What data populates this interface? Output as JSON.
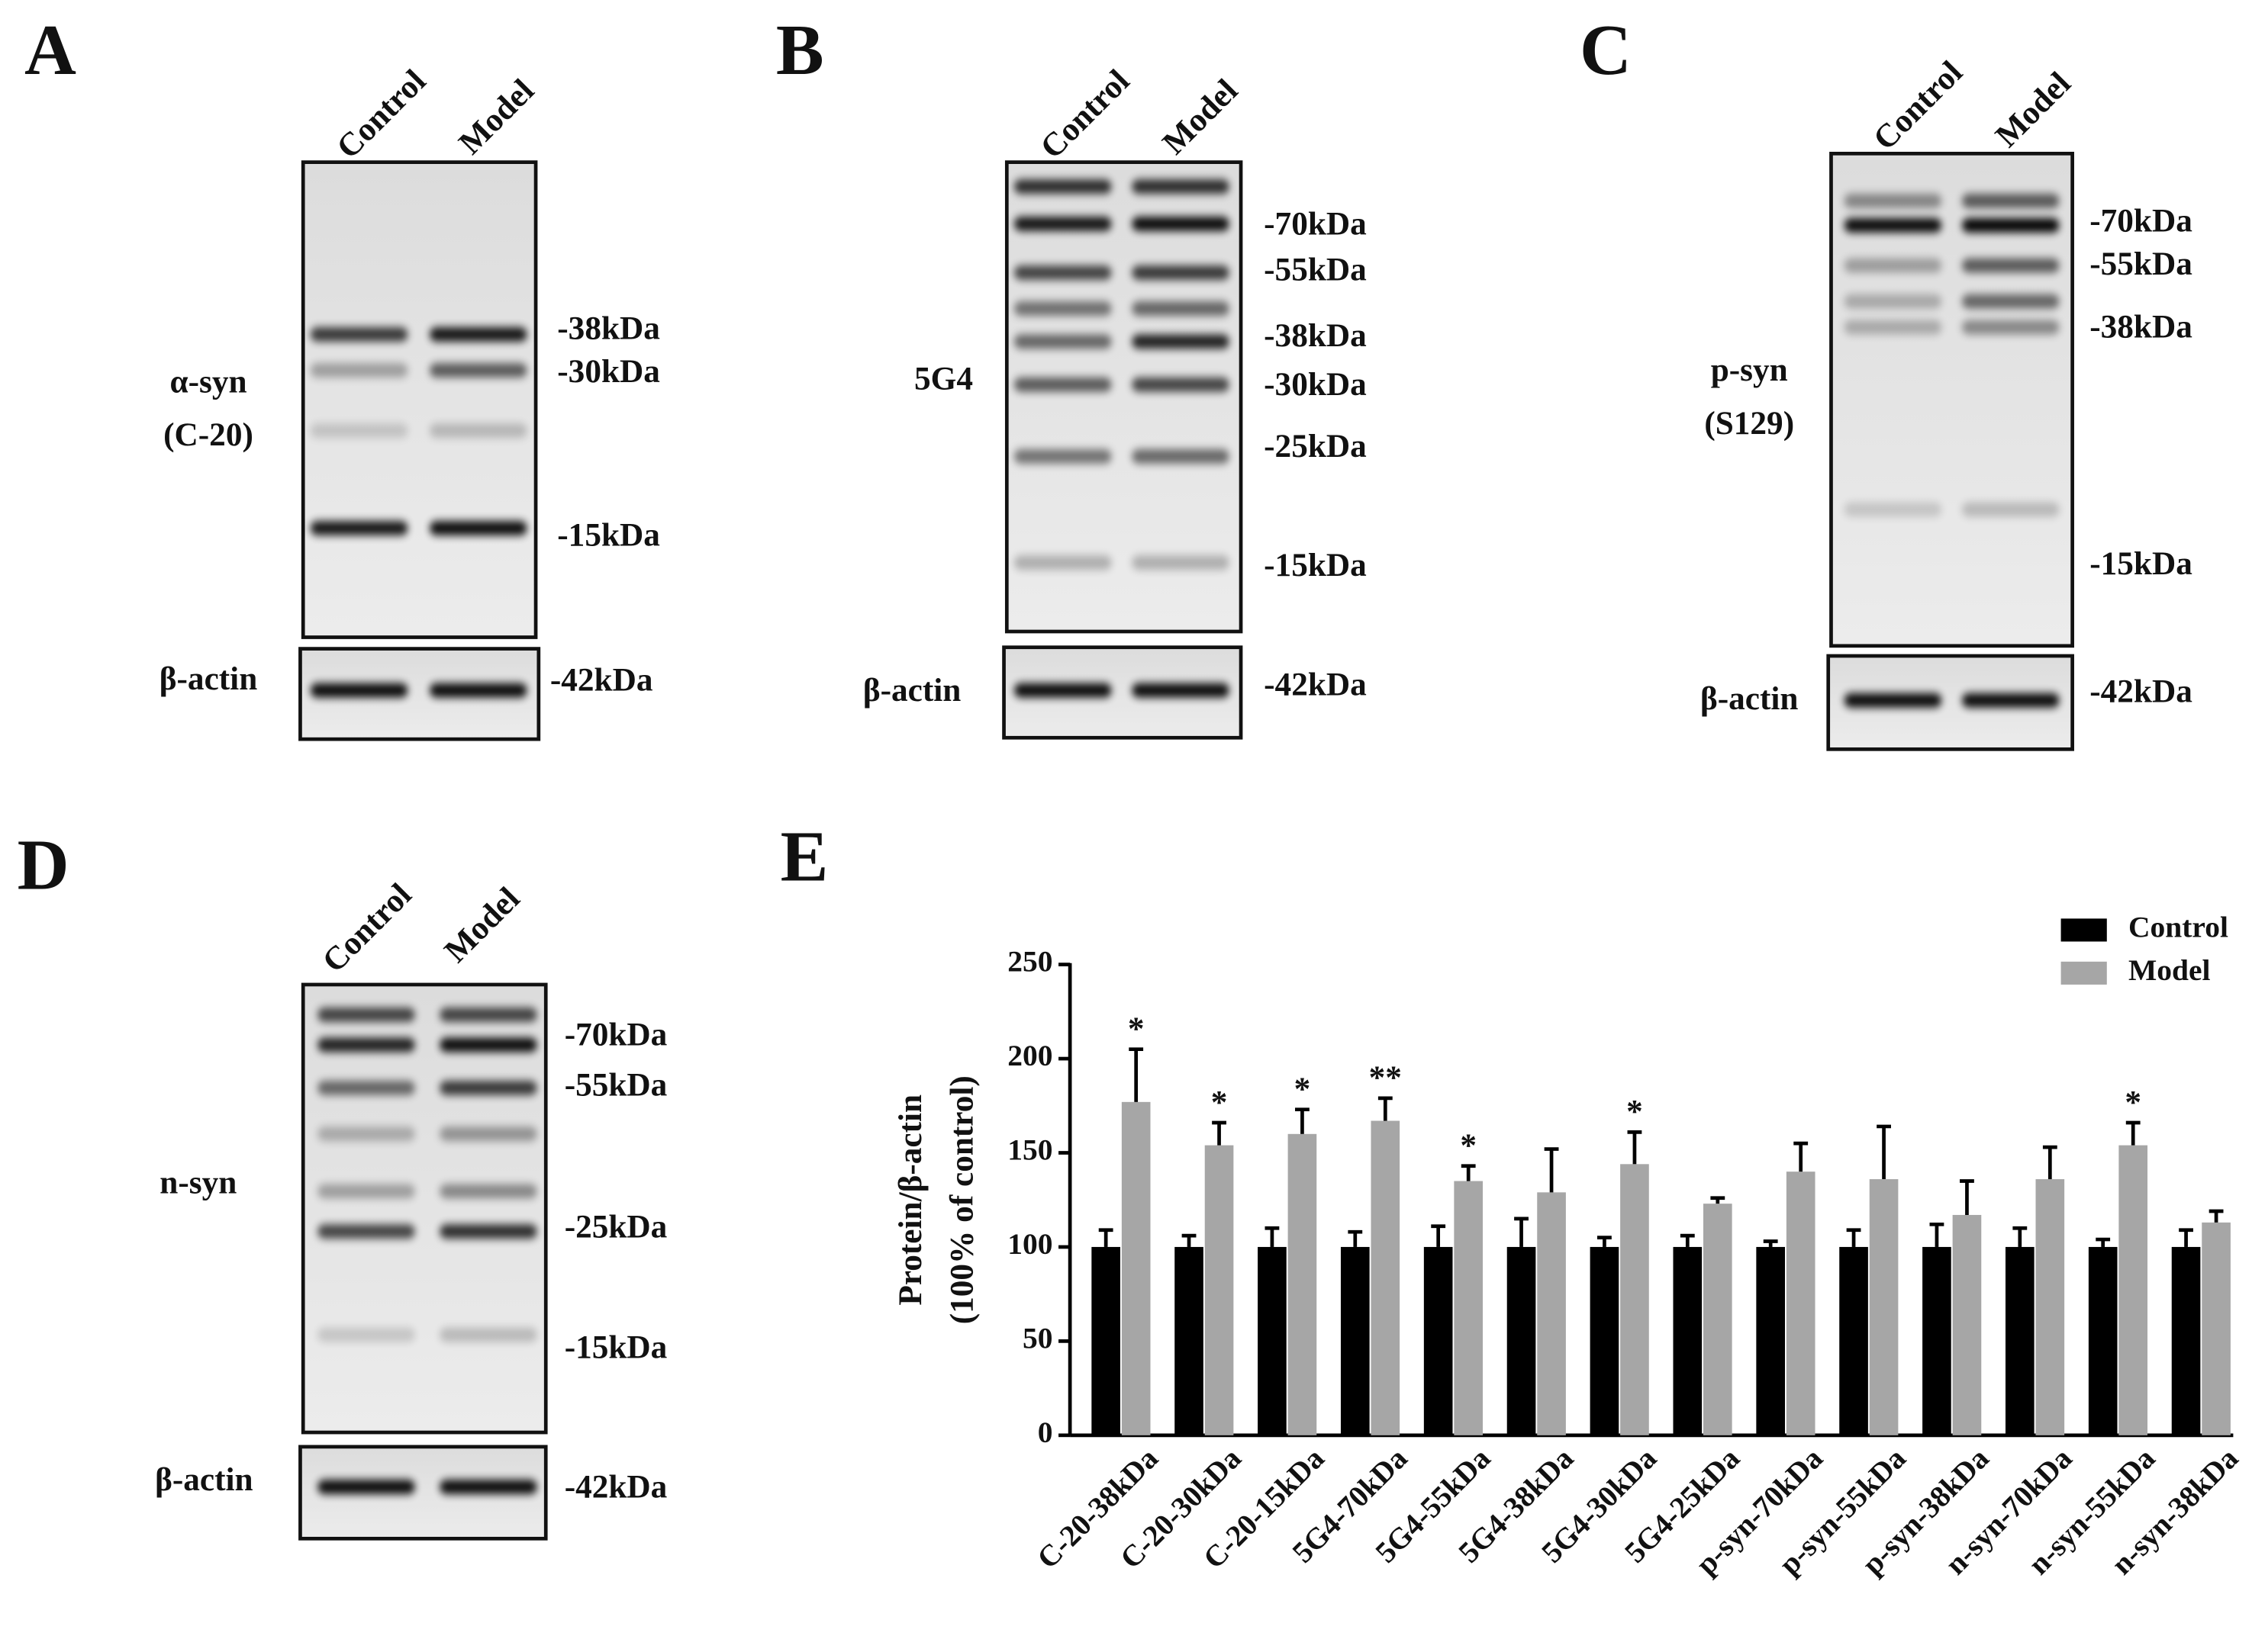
{
  "panels": [
    {
      "letter": "A",
      "lanes": [
        "Control",
        "Model"
      ],
      "antibody": [
        "α-syn",
        "(C-20)"
      ],
      "markers": [
        "-38kDa",
        "-30kDa",
        "-15kDa"
      ],
      "loading_control": "β-actin",
      "loading_marker": "-42kDa"
    },
    {
      "letter": "B",
      "lanes": [
        "Control",
        "Model"
      ],
      "antibody": [
        "5G4"
      ],
      "markers": [
        "-70kDa",
        "-55kDa",
        "-38kDa",
        "-30kDa",
        "-25kDa",
        "-15kDa"
      ],
      "loading_control": "β-actin",
      "loading_marker": "-42kDa"
    },
    {
      "letter": "C",
      "lanes": [
        "Control",
        "Model"
      ],
      "antibody": [
        "p-syn",
        "(S129)"
      ],
      "markers": [
        "-70kDa",
        "-55kDa",
        "-38kDa",
        "-15kDa"
      ],
      "loading_control": "β-actin",
      "loading_marker": "-42kDa"
    },
    {
      "letter": "D",
      "lanes": [
        "Control",
        "Model"
      ],
      "antibody": [
        "n-syn"
      ],
      "markers": [
        "-70kDa",
        "-55kDa",
        "-25kDa",
        "-15kDa"
      ],
      "loading_control": "β-actin",
      "loading_marker": "-42kDa"
    }
  ],
  "chart_data": {
    "type": "bar",
    "letter": "E",
    "ylabel": [
      "Protein/β-actin",
      "(100% of control)"
    ],
    "categories": [
      "C-20-38kDa",
      "C-20-30kDa",
      "C-20-15kDa",
      "5G4-70kDa",
      "5G4-55kDa",
      "5G4-38kDa",
      "5G4-30kDa",
      "5G4-25kDa",
      "p-syn-70kDa",
      "p-syn-55kDa",
      "p-syn-38kDa",
      "n-syn-70kDa",
      "n-syn-55kDa",
      "n-syn-38kDa"
    ],
    "series": [
      {
        "name": "Control",
        "color": "#000000",
        "values": [
          100,
          100,
          100,
          100,
          100,
          100,
          100,
          100,
          100,
          100,
          100,
          100,
          100,
          100
        ],
        "errors": [
          9,
          6,
          10,
          8,
          11,
          15,
          5,
          6,
          3,
          9,
          12,
          10,
          4,
          9
        ]
      },
      {
        "name": "Model",
        "color": "#a6a6a6",
        "values": [
          177,
          154,
          160,
          167,
          135,
          129,
          144,
          123,
          140,
          136,
          117,
          136,
          154,
          113
        ],
        "errors": [
          28,
          12,
          13,
          12,
          8,
          23,
          17,
          3,
          15,
          28,
          18,
          17,
          12,
          6
        ]
      }
    ],
    "significance": [
      "*",
      "*",
      "*",
      "**",
      "*",
      null,
      "*",
      null,
      null,
      null,
      null,
      null,
      "*",
      null
    ],
    "ylim": [
      0,
      250
    ],
    "yticks": [
      0,
      50,
      100,
      150,
      200,
      250
    ],
    "legend": "upper right"
  }
}
